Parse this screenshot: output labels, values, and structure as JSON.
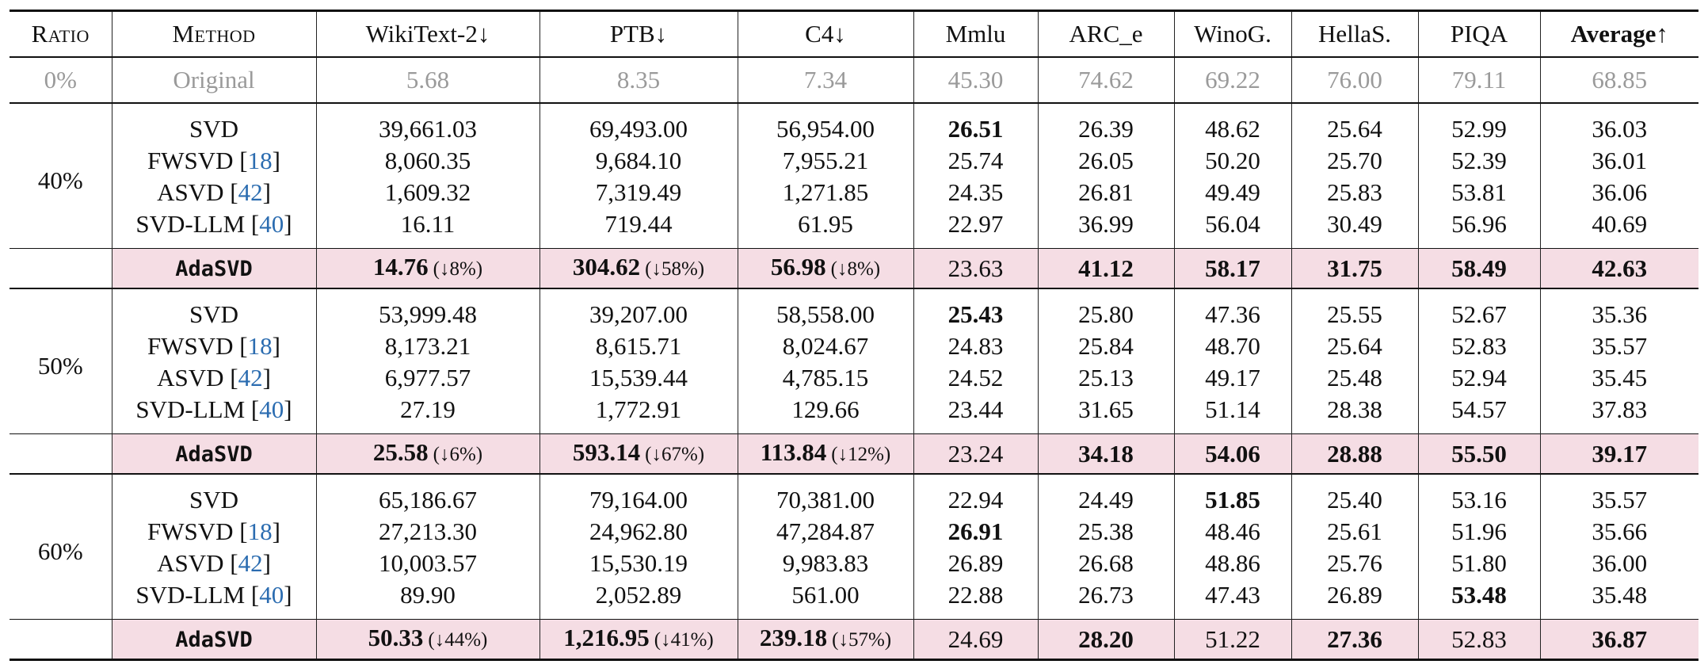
{
  "headers": {
    "ratio": "Ratio",
    "method": "Method",
    "wikitext": "WikiText-2↓",
    "ptb": "PTB↓",
    "c4": "C4↓",
    "mmlu": "Mmlu",
    "arc_e": "ARC_e",
    "winog": "WinoG.",
    "hellas": "HellaS.",
    "piqa": "PIQA",
    "average": "Average↑"
  },
  "original": {
    "ratio": "0%",
    "method": "Original",
    "values": [
      "5.68",
      "8.35",
      "7.34",
      "45.30",
      "74.62",
      "69.22",
      "76.00",
      "79.11",
      "68.85"
    ]
  },
  "blocks": [
    {
      "ratio": "40%",
      "rows": [
        {
          "name": "SVD",
          "cite": "",
          "values": [
            "39,661.03",
            "69,493.00",
            "56,954.00",
            "26.51",
            "26.39",
            "48.62",
            "25.64",
            "52.99",
            "36.03"
          ]
        },
        {
          "name": "FWSVD [",
          "cite": "18",
          "values": [
            "8,060.35",
            "9,684.10",
            "7,955.21",
            "25.74",
            "26.05",
            "50.20",
            "25.70",
            "52.39",
            "36.01"
          ]
        },
        {
          "name": "ASVD [",
          "cite": "42",
          "values": [
            "1,609.32",
            "7,319.49",
            "1,271.85",
            "24.35",
            "26.81",
            "49.49",
            "25.83",
            "53.81",
            "36.06"
          ]
        },
        {
          "name": "SVD-LLM [",
          "cite": "40",
          "values": [
            "16.11",
            "719.44",
            "61.95",
            "22.97",
            "36.99",
            "56.04",
            "30.49",
            "56.96",
            "40.69"
          ]
        }
      ],
      "ours": {
        "name": "AdaSVD",
        "values": [
          "14.76",
          "304.62",
          "56.98",
          "23.63",
          "41.12",
          "58.17",
          "31.75",
          "58.49",
          "42.63"
        ],
        "deltas": [
          "(↓8%)",
          "(↓58%)",
          "(↓8%)"
        ]
      }
    },
    {
      "ratio": "50%",
      "rows": [
        {
          "name": "SVD",
          "cite": "",
          "values": [
            "53,999.48",
            "39,207.00",
            "58,558.00",
            "25.43",
            "25.80",
            "47.36",
            "25.55",
            "52.67",
            "35.36"
          ]
        },
        {
          "name": "FWSVD [",
          "cite": "18",
          "values": [
            "8,173.21",
            "8,615.71",
            "8,024.67",
            "24.83",
            "25.84",
            "48.70",
            "25.64",
            "52.83",
            "35.57"
          ]
        },
        {
          "name": "ASVD [",
          "cite": "42",
          "values": [
            "6,977.57",
            "15,539.44",
            "4,785.15",
            "24.52",
            "25.13",
            "49.17",
            "25.48",
            "52.94",
            "35.45"
          ]
        },
        {
          "name": "SVD-LLM [",
          "cite": "40",
          "values": [
            "27.19",
            "1,772.91",
            "129.66",
            "23.44",
            "31.65",
            "51.14",
            "28.38",
            "54.57",
            "37.83"
          ]
        }
      ],
      "ours": {
        "name": "AdaSVD",
        "values": [
          "25.58",
          "593.14",
          "113.84",
          "23.24",
          "34.18",
          "54.06",
          "28.88",
          "55.50",
          "39.17"
        ],
        "deltas": [
          "(↓6%)",
          "(↓67%)",
          "(↓12%)"
        ]
      }
    },
    {
      "ratio": "60%",
      "rows": [
        {
          "name": "SVD",
          "cite": "",
          "values": [
            "65,186.67",
            "79,164.00",
            "70,381.00",
            "22.94",
            "24.49",
            "51.85",
            "25.40",
            "53.16",
            "35.57"
          ]
        },
        {
          "name": "FWSVD [",
          "cite": "18",
          "values": [
            "27,213.30",
            "24,962.80",
            "47,284.87",
            "26.91",
            "25.38",
            "48.46",
            "25.61",
            "51.96",
            "35.66"
          ]
        },
        {
          "name": "ASVD [",
          "cite": "42",
          "values": [
            "10,003.57",
            "15,530.19",
            "9,983.83",
            "26.89",
            "26.68",
            "48.86",
            "25.76",
            "51.80",
            "36.00"
          ]
        },
        {
          "name": "SVD-LLM [",
          "cite": "40",
          "values": [
            "89.90",
            "2,052.89",
            "561.00",
            "22.88",
            "26.73",
            "47.43",
            "26.89",
            "53.48",
            "35.48"
          ]
        }
      ],
      "ours": {
        "name": "AdaSVD",
        "values": [
          "50.33",
          "1,216.95",
          "239.18",
          "24.69",
          "28.20",
          "51.22",
          "27.36",
          "52.83",
          "36.87"
        ],
        "deltas": [
          "(↓44%)",
          "(↓41%)",
          "(↓57%)"
        ]
      }
    }
  ],
  "colors": {
    "highlight_row": "#f5dde4",
    "citation": "#2b6cb0",
    "original_row_text": "#9a9a9a"
  }
}
